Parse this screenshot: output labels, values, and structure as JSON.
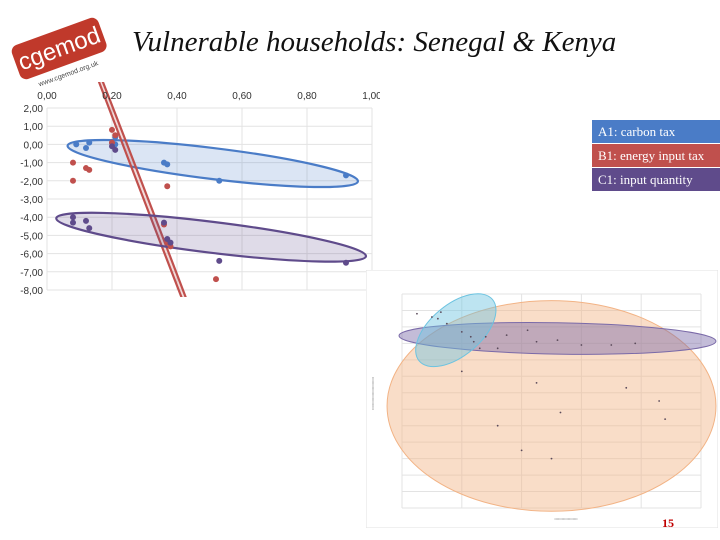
{
  "slide": {
    "title": "Vulnerable households: Senegal & Kenya",
    "page_number": "15"
  },
  "logo": {
    "name": "cgemod",
    "url": "www.cgemod.org.uk",
    "color": "#c0392b"
  },
  "legend": [
    {
      "label": "A1: carbon tax",
      "color": "#4a7cc7"
    },
    {
      "label": "B1: energy input tax",
      "color": "#c0504d"
    },
    {
      "label": "C1: input quantity",
      "color": "#5f4b8b"
    }
  ],
  "chart_data": [
    {
      "type": "scatter",
      "title": "",
      "xlabel": "",
      "ylabel": "",
      "xlim": [
        0,
        1
      ],
      "ylim": [
        -8,
        2
      ],
      "x_ticks": [
        "0,00",
        "0,20",
        "0,40",
        "0,60",
        "0,80",
        "1,00"
      ],
      "y_ticks": [
        "2,00",
        "1,00",
        "0,00",
        "-1,00",
        "-2,00",
        "-3,00",
        "-4,00",
        "-5,00",
        "-6,00",
        "-7,00",
        "-8,00"
      ],
      "grid": true,
      "legend_position": "right",
      "series": [
        {
          "name": "A1: carbon tax",
          "color": "#4a7cc7",
          "points": [
            [
              0.09,
              0.0
            ],
            [
              0.12,
              -0.2
            ],
            [
              0.13,
              0.1
            ],
            [
              0.2,
              0.1
            ],
            [
              0.21,
              0.4
            ],
            [
              0.21,
              0.0
            ],
            [
              0.36,
              -1.0
            ],
            [
              0.37,
              -1.1
            ],
            [
              0.53,
              -2.0
            ],
            [
              0.92,
              -1.7
            ]
          ]
        },
        {
          "name": "B1: energy input tax",
          "color": "#c0504d",
          "points": [
            [
              0.08,
              -1.0
            ],
            [
              0.08,
              -2.0
            ],
            [
              0.13,
              -1.4
            ],
            [
              0.12,
              -1.3
            ],
            [
              0.2,
              0.1
            ],
            [
              0.2,
              0.8
            ],
            [
              0.21,
              0.5
            ],
            [
              0.37,
              -2.3
            ],
            [
              0.36,
              -4.4
            ],
            [
              0.37,
              -5.4
            ],
            [
              0.38,
              -5.6
            ],
            [
              0.52,
              -7.4
            ]
          ]
        },
        {
          "name": "C1: input quantity",
          "color": "#5f4b8b",
          "points": [
            [
              0.08,
              -4.0
            ],
            [
              0.08,
              -4.3
            ],
            [
              0.12,
              -4.2
            ],
            [
              0.13,
              -4.6
            ],
            [
              0.2,
              -0.1
            ],
            [
              0.21,
              -0.3
            ],
            [
              0.36,
              -4.3
            ],
            [
              0.37,
              -5.2
            ],
            [
              0.38,
              -5.4
            ],
            [
              0.53,
              -6.4
            ],
            [
              0.92,
              -6.5
            ]
          ]
        }
      ],
      "ellipses": [
        {
          "series": "A1: carbon tax",
          "center": [
            0.51,
            -1.05
          ],
          "semi_axes": [
            0.45,
            0.85
          ],
          "rotation_deg": 7
        },
        {
          "series": "B1: energy input tax",
          "center": [
            0.315,
            -3.5
          ],
          "semi_axes": [
            0.82,
            0.115
          ],
          "rotation_deg": 69
        },
        {
          "series": "C1: input quantity",
          "center": [
            0.505,
            -5.1
          ],
          "semi_axes": [
            0.48,
            0.85
          ],
          "rotation_deg": 7
        }
      ]
    },
    {
      "type": "scatter",
      "title": "",
      "xlabel": "",
      "ylabel": "",
      "xlim": [
        0.1,
        1.1
      ],
      "ylim": [
        -12,
        1
      ],
      "grid": true,
      "series": [
        {
          "name": "A1: carbon tax",
          "color": "#6cc3e0",
          "points": [
            [
              0.15,
              -0.2
            ],
            [
              0.2,
              -0.4
            ],
            [
              0.23,
              -0.1
            ],
            [
              0.25,
              -0.8
            ],
            [
              0.3,
              -1.3
            ],
            [
              0.34,
              -1.9
            ],
            [
              0.36,
              -2.3
            ],
            [
              0.33,
              -1.6
            ]
          ]
        },
        {
          "name": "B1: energy input tax",
          "color": "#f2b385",
          "points": [
            [
              0.3,
              -3.7
            ],
            [
              0.42,
              -2.3
            ],
            [
              0.55,
              -4.4
            ],
            [
              0.63,
              -6.2
            ],
            [
              0.85,
              -4.7
            ],
            [
              0.96,
              -5.5
            ],
            [
              0.98,
              -6.6
            ],
            [
              0.42,
              -7.0
            ],
            [
              0.5,
              -8.5
            ],
            [
              0.6,
              -9.0
            ]
          ]
        },
        {
          "name": "C1: input quantity",
          "color": "#7a6aa8",
          "points": [
            [
              0.22,
              -0.5
            ],
            [
              0.38,
              -1.6
            ],
            [
              0.45,
              -1.5
            ],
            [
              0.52,
              -1.2
            ],
            [
              0.55,
              -1.9
            ],
            [
              0.62,
              -1.8
            ],
            [
              0.7,
              -2.1
            ],
            [
              0.8,
              -2.1
            ],
            [
              0.88,
              -2.0
            ]
          ]
        }
      ],
      "ellipses": [
        {
          "series": "B1: energy input tax",
          "center": [
            0.6,
            -5.8
          ],
          "semi_axes": [
            0.55,
            6.4
          ],
          "rotation_deg": 0
        },
        {
          "series": "C1: input quantity",
          "center": [
            0.62,
            -1.7
          ],
          "semi_axes": [
            0.53,
            0.95
          ],
          "rotation_deg": 1
        },
        {
          "series": "A1: carbon tax",
          "center": [
            0.28,
            -1.2
          ],
          "semi_axes": [
            0.16,
            1.55
          ],
          "rotation_deg": -40
        }
      ]
    }
  ]
}
